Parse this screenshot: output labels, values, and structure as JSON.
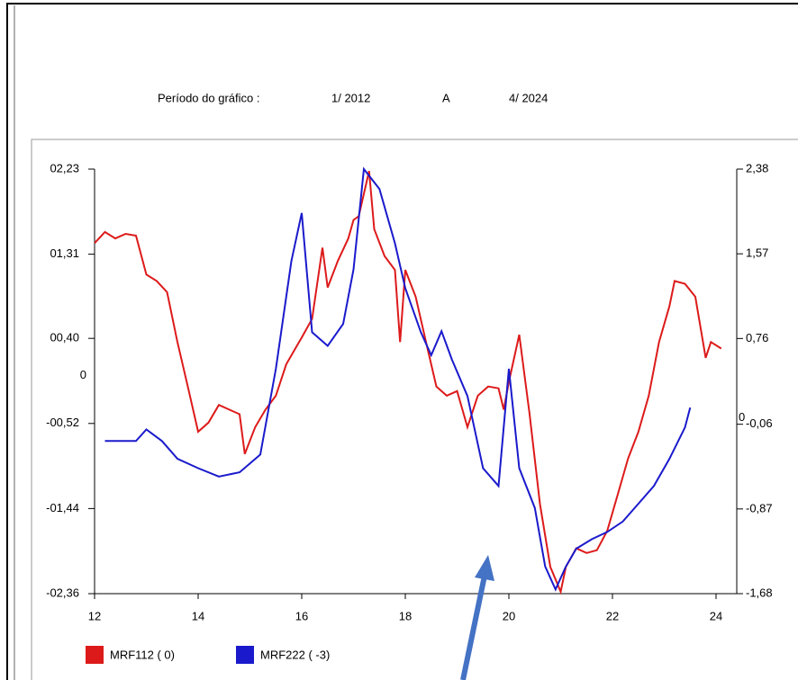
{
  "chart_data": {
    "type": "line",
    "period_label": "Período do gráfico :",
    "start": "1/ 2012",
    "separator": "A",
    "end": "4/ 2024",
    "xlim": [
      12,
      24
    ],
    "xticks": [
      12,
      14,
      16,
      18,
      20,
      22,
      24
    ],
    "ylim": [
      -2.36,
      2.23
    ],
    "yticks": [
      {
        "value": 2.23,
        "label": "02,23"
      },
      {
        "value": 1.31,
        "label": "01,31"
      },
      {
        "value": 0.4,
        "label": "00,40"
      },
      {
        "value": 0,
        "label": "0"
      },
      {
        "value": -0.52,
        "label": "-00,52"
      },
      {
        "value": -1.44,
        "label": "-01,44"
      },
      {
        "value": -2.36,
        "label": "-02,36"
      }
    ],
    "y2lim": [
      -1.68,
      2.38
    ],
    "y2ticks": [
      {
        "value": 2.38,
        "label": "2,38"
      },
      {
        "value": 1.57,
        "label": "1,57"
      },
      {
        "value": 0.76,
        "label": "0,76"
      },
      {
        "value": 0,
        "label": "0"
      },
      {
        "value": -0.06,
        "label": "-0,06"
      },
      {
        "value": -0.87,
        "label": "-0,87"
      },
      {
        "value": -1.68,
        "label": "-1,68"
      }
    ],
    "series": [
      {
        "name": "MRF112  ( 0)",
        "color": "#dd1a1a",
        "x": [
          12.0,
          12.2,
          12.4,
          12.6,
          12.8,
          13.0,
          13.2,
          13.4,
          13.6,
          13.8,
          14.0,
          14.2,
          14.4,
          14.6,
          14.8,
          14.9,
          15.1,
          15.3,
          15.5,
          15.7,
          16.0,
          16.2,
          16.4,
          16.5,
          16.7,
          16.9,
          17.0,
          17.1,
          17.3,
          17.4,
          17.6,
          17.8,
          17.9,
          18.0,
          18.2,
          18.4,
          18.6,
          18.8,
          19.0,
          19.2,
          19.4,
          19.6,
          19.8,
          19.9,
          20.0,
          20.2,
          20.4,
          20.6,
          20.8,
          21.0,
          21.1,
          21.3,
          21.5,
          21.7,
          21.9,
          22.1,
          22.3,
          22.5,
          22.7,
          22.9,
          23.1,
          23.2,
          23.4,
          23.6,
          23.8,
          23.9,
          24.1
        ],
        "values": [
          1.43,
          1.55,
          1.48,
          1.53,
          1.51,
          1.09,
          1.02,
          0.9,
          0.36,
          -0.12,
          -0.61,
          -0.51,
          -0.32,
          -0.37,
          -0.42,
          -0.85,
          -0.56,
          -0.37,
          -0.22,
          0.12,
          0.41,
          0.61,
          1.38,
          0.95,
          1.24,
          1.48,
          1.68,
          1.72,
          2.21,
          1.58,
          1.29,
          1.14,
          0.36,
          1.14,
          0.85,
          0.36,
          -0.12,
          -0.22,
          -0.17,
          -0.56,
          -0.22,
          -0.12,
          -0.14,
          -0.37,
          -0.07,
          0.44,
          -0.42,
          -1.39,
          -2.07,
          -2.34,
          -2.07,
          -1.87,
          -1.92,
          -1.89,
          -1.68,
          -1.29,
          -0.9,
          -0.61,
          -0.22,
          0.36,
          0.75,
          1.02,
          0.99,
          0.85,
          0.19,
          0.36,
          0.29
        ]
      },
      {
        "name": "MRF222  ( -3)",
        "color": "#1a1acc",
        "axis": "y2",
        "x": [
          12.2,
          12.8,
          13.0,
          13.3,
          13.6,
          14.0,
          14.4,
          14.8,
          15.2,
          15.5,
          15.8,
          16.0,
          16.2,
          16.5,
          16.8,
          17.0,
          17.2,
          17.5,
          17.8,
          18.0,
          18.3,
          18.5,
          18.7,
          18.9,
          19.2,
          19.5,
          19.8,
          20.0,
          20.2,
          20.5,
          20.7,
          20.9,
          21.1,
          21.3,
          21.6,
          21.9,
          22.2,
          22.5,
          22.8,
          23.1,
          23.4,
          23.5
        ],
        "values": [
          -0.22,
          -0.22,
          -0.11,
          -0.22,
          -0.39,
          -0.48,
          -0.56,
          -0.52,
          -0.35,
          0.47,
          1.5,
          1.96,
          0.82,
          0.69,
          0.9,
          1.42,
          2.38,
          2.19,
          1.67,
          1.24,
          0.82,
          0.6,
          0.83,
          0.56,
          0.21,
          -0.48,
          -0.65,
          0.47,
          -0.48,
          -0.86,
          -1.42,
          -1.64,
          -1.42,
          -1.25,
          -1.16,
          -1.09,
          -0.99,
          -0.82,
          -0.65,
          -0.39,
          -0.09,
          0.1
        ]
      }
    ]
  }
}
